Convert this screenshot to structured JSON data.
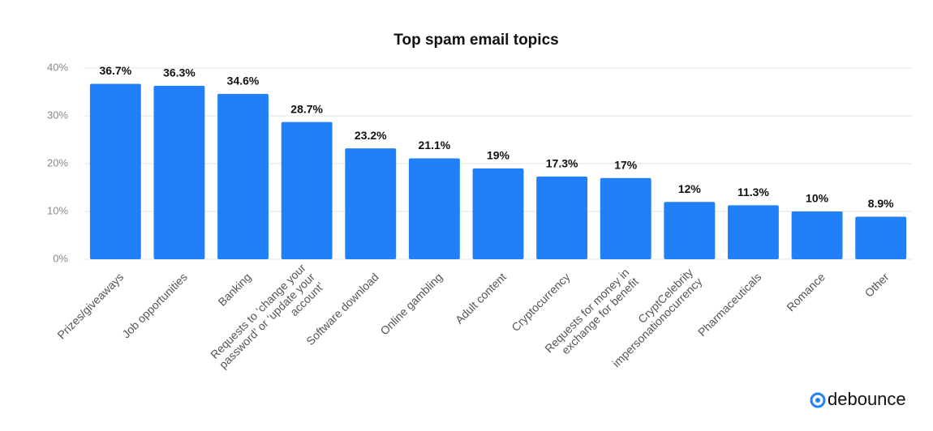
{
  "chart_data": {
    "type": "bar",
    "title": "Top spam email topics",
    "categories": [
      [
        "Prizes/giveaways"
      ],
      [
        "Job opportunities"
      ],
      [
        "Banking"
      ],
      [
        "Requests to ‘change your",
        "password’ or ‘update your",
        "account’"
      ],
      [
        "Software download"
      ],
      [
        "Online gambling"
      ],
      [
        "Adult content"
      ],
      [
        "Cryptocurrency"
      ],
      [
        "Requests for money in",
        "exchange for benefit"
      ],
      [
        "CryptCelebrity",
        "impersonationocurrency"
      ],
      [
        "Pharmaceuticals"
      ],
      [
        "Romance"
      ],
      [
        "Other"
      ]
    ],
    "values": [
      36.7,
      36.3,
      34.6,
      28.7,
      23.2,
      21.1,
      19,
      17.3,
      17,
      12,
      11.3,
      10,
      8.9
    ],
    "value_labels": [
      "36.7%",
      "36.3%",
      "34.6%",
      "28.7%",
      "23.2%",
      "21.1%",
      "19%",
      "17.3%",
      "17%",
      "12%",
      "11.3%",
      "10%",
      "8.9%"
    ],
    "color": "#2180f7",
    "ylim": [
      0,
      40
    ],
    "yticks": [
      {
        "value": 0,
        "label": "0%"
      },
      {
        "value": 10,
        "label": "10%"
      },
      {
        "value": 20,
        "label": "20%"
      },
      {
        "value": 30,
        "label": "30%"
      },
      {
        "value": 40,
        "label": "40%"
      }
    ],
    "grid": true
  },
  "logo": "debounce"
}
